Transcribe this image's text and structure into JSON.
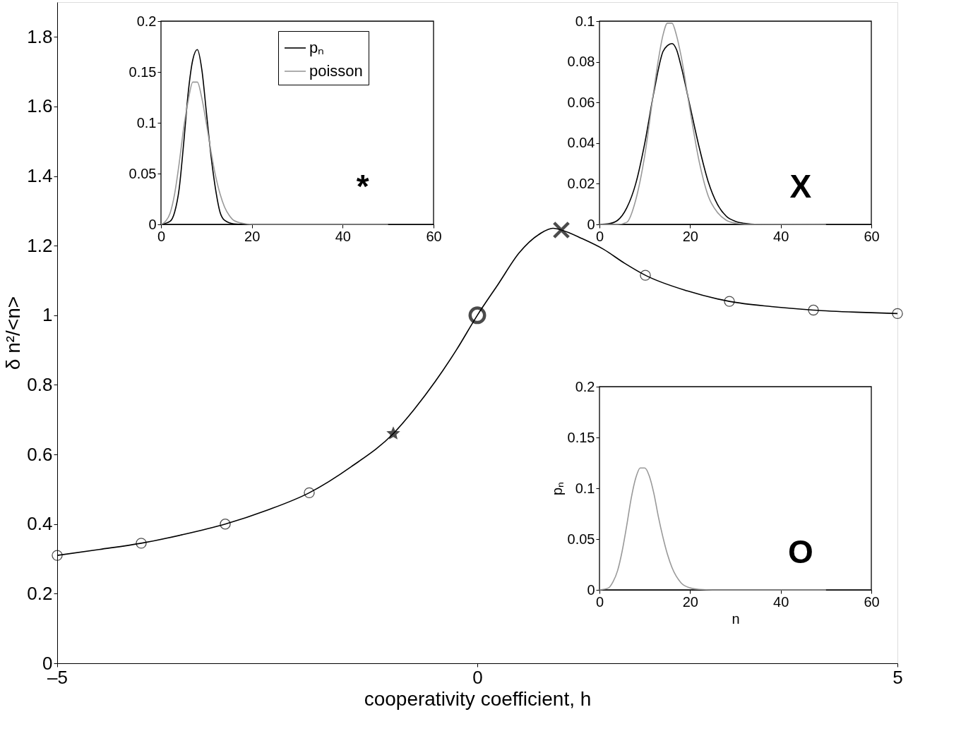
{
  "chart_data": [
    {
      "type": "line",
      "xlabel": "cooperativity coefficient, h",
      "ylabel": "δ n²/<n>",
      "xlim": [
        -5,
        5
      ],
      "ylim": [
        0,
        1.9
      ],
      "xticks": [
        {
          "value": -5,
          "label": "–5"
        },
        0,
        5
      ],
      "yticks": [
        0,
        0.2,
        0.4,
        0.6,
        0.8,
        1,
        1.2,
        1.4,
        1.6,
        1.8
      ],
      "series": [
        {
          "type": "line",
          "marker": "none",
          "color": "#000000",
          "x": [
            -5,
            -4.5,
            -4,
            -3.5,
            -3,
            -2.5,
            -2,
            -1.5,
            -1,
            -0.75,
            -0.5,
            -0.25,
            0,
            0.25,
            0.5,
            0.75,
            0.9,
            1,
            1.25,
            1.5,
            1.75,
            2,
            2.5,
            3,
            3.5,
            4,
            4.5,
            5
          ],
          "values": [
            0.31,
            0.327,
            0.345,
            0.37,
            0.4,
            0.44,
            0.49,
            0.565,
            0.66,
            0.73,
            0.81,
            0.9,
            1.0,
            1.09,
            1.18,
            1.235,
            1.25,
            1.245,
            1.22,
            1.19,
            1.15,
            1.115,
            1.07,
            1.04,
            1.025,
            1.015,
            1.009,
            1.005
          ]
        },
        {
          "type": "scatter",
          "marker": "circle",
          "color": "#000000",
          "x": [
            -5,
            -4,
            -3,
            -2,
            2,
            3,
            4,
            5
          ],
          "values": [
            0.31,
            0.345,
            0.4,
            0.49,
            1.115,
            1.04,
            1.015,
            1.005
          ]
        },
        {
          "type": "scatter",
          "marker": "star",
          "color": "#000000",
          "x": [
            -1
          ],
          "values": [
            0.66
          ]
        },
        {
          "type": "scatter",
          "marker": "circle",
          "color": "#000000",
          "x": [
            0
          ],
          "values": [
            1.0
          ]
        },
        {
          "type": "scatter",
          "marker": "cross",
          "color": "#000000",
          "x": [
            1
          ],
          "values": [
            1.245
          ]
        }
      ]
    },
    {
      "type": "line",
      "xlim": [
        0,
        60
      ],
      "ylim": [
        0,
        0.2
      ],
      "xticks": [
        0,
        20,
        40,
        60
      ],
      "yticks": [
        0,
        0.05,
        0.1,
        0.15,
        0.2
      ],
      "legend": "top right",
      "annotations": [
        "*"
      ],
      "series": [
        {
          "name": "pₙ",
          "color": "#000000",
          "x": [
            0,
            2,
            3,
            4,
            5,
            6,
            7,
            8,
            9,
            10,
            11,
            12,
            13,
            14,
            16,
            18,
            20,
            50
          ],
          "values": [
            0,
            0.003,
            0.012,
            0.035,
            0.08,
            0.13,
            0.162,
            0.172,
            0.152,
            0.11,
            0.068,
            0.035,
            0.012,
            0.004,
            0.0005,
            0,
            0,
            0
          ]
        },
        {
          "name": "poisson",
          "color": "#999999",
          "x": [
            0,
            1,
            2,
            3,
            4,
            5,
            6,
            7,
            8,
            9,
            10,
            11,
            12,
            13,
            14,
            15,
            16,
            18,
            20,
            50
          ],
          "values": [
            0,
            0.003,
            0.011,
            0.03,
            0.06,
            0.095,
            0.122,
            0.14,
            0.14,
            0.124,
            0.099,
            0.072,
            0.048,
            0.03,
            0.017,
            0.009,
            0.004,
            0.001,
            0,
            0
          ]
        }
      ]
    },
    {
      "type": "line",
      "xlim": [
        0,
        60
      ],
      "ylim": [
        0,
        0.1
      ],
      "xticks": [
        0,
        20,
        40,
        60
      ],
      "yticks": [
        0,
        0.02,
        0.04,
        0.06,
        0.08,
        0.1
      ],
      "annotations": [
        "X"
      ],
      "series": [
        {
          "color": "#000000",
          "x": [
            0,
            2,
            4,
            6,
            8,
            10,
            12,
            14,
            15,
            16,
            17,
            18,
            20,
            22,
            24,
            26,
            28,
            30,
            32,
            35,
            50
          ],
          "values": [
            0,
            0.0003,
            0.002,
            0.008,
            0.02,
            0.04,
            0.065,
            0.085,
            0.088,
            0.089,
            0.086,
            0.078,
            0.058,
            0.038,
            0.021,
            0.01,
            0.004,
            0.0015,
            0.0005,
            0,
            0
          ]
        },
        {
          "color": "#999999",
          "x": [
            0,
            4,
            6,
            8,
            10,
            12,
            13,
            14,
            15,
            16,
            17,
            18,
            20,
            22,
            24,
            26,
            28,
            30,
            32,
            50
          ],
          "values": [
            0,
            0,
            0.001,
            0.012,
            0.034,
            0.066,
            0.081,
            0.093,
            0.099,
            0.099,
            0.093,
            0.083,
            0.056,
            0.031,
            0.014,
            0.006,
            0.002,
            0.0006,
            0.0001,
            0
          ]
        }
      ]
    },
    {
      "type": "line",
      "xlabel": "n",
      "ylabel": "pₙ",
      "xlim": [
        0,
        60
      ],
      "ylim": [
        0,
        0.2
      ],
      "xticks": [
        0,
        20,
        40,
        60
      ],
      "yticks": [
        0,
        0.05,
        0.1,
        0.15,
        0.2
      ],
      "annotations": [
        "O"
      ],
      "series": [
        {
          "color": "#999999",
          "x": [
            0,
            2,
            3,
            4,
            5,
            6,
            7,
            8,
            9,
            10,
            11,
            12,
            13,
            14,
            15,
            16,
            18,
            20,
            22,
            25,
            50
          ],
          "values": [
            0,
            0.002,
            0.008,
            0.019,
            0.038,
            0.063,
            0.09,
            0.11,
            0.12,
            0.12,
            0.112,
            0.095,
            0.072,
            0.052,
            0.035,
            0.022,
            0.007,
            0.002,
            0.0005,
            0,
            0
          ]
        }
      ]
    }
  ]
}
